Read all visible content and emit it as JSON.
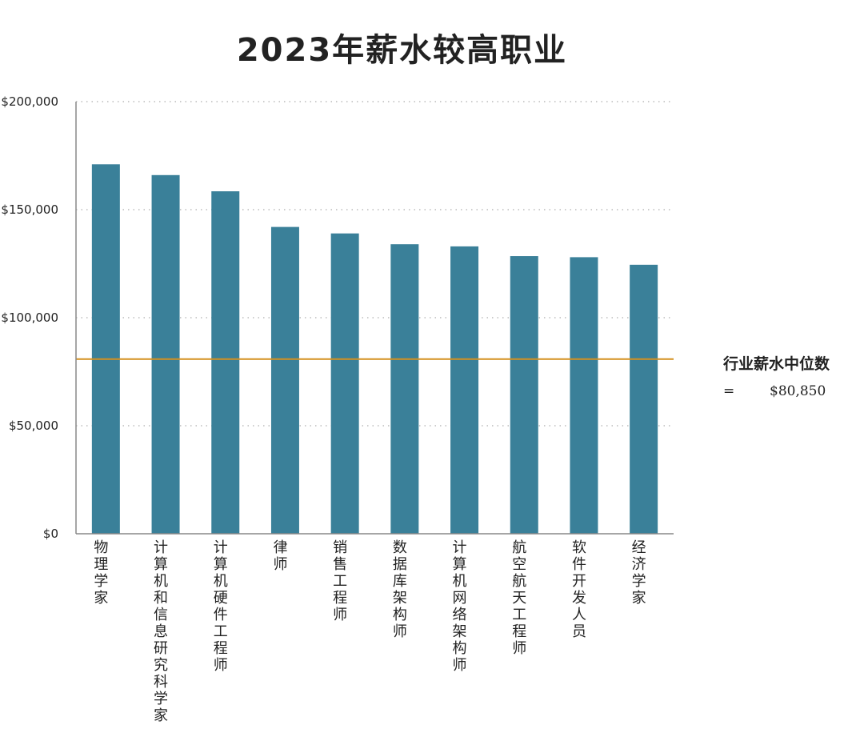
{
  "chart_data": {
    "type": "bar",
    "title": "2023年薪水较高职业",
    "categories": [
      "物理学家",
      "计算机和信息研究科学家",
      "计算机硬件工程师",
      "律师",
      "销售工程师",
      "数据库架构师",
      "计算机网络架构师",
      "航空航天工程师",
      "软件开发人员",
      "经济学家"
    ],
    "values": [
      171000,
      166000,
      158500,
      142000,
      139000,
      134000,
      133000,
      128500,
      128000,
      124500
    ],
    "ylim": [
      0,
      200000
    ],
    "yticks": [
      0,
      50000,
      100000,
      150000,
      200000
    ],
    "ytick_labels": [
      "$0",
      "$50,000",
      "$100,000",
      "$150,000",
      "$200,000"
    ],
    "xlabel": "",
    "ylabel": "",
    "grid": "horizontal dotted",
    "bar_color": "#3a8099",
    "reference_line": {
      "value": 80850,
      "color": "#d4901f",
      "label": "行业薪水中位数",
      "equals": "=",
      "value_text": "$80,850"
    }
  }
}
